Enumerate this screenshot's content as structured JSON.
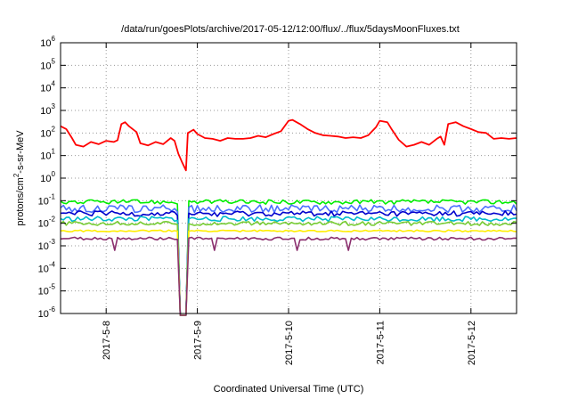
{
  "chart_data": {
    "type": "line",
    "title": "/data/run/goesPlots/archive/2017-05-12/12:00/flux/../flux/5daysMoonFluxes.txt",
    "xlabel": "Coordinated Universal Time (UTC)",
    "ylabel": "protons/cm2-s-sr-MeV",
    "ylabel_parts": [
      "protons/cm",
      "2",
      "-s-sr-MeV"
    ],
    "yscale": "log",
    "ylim": [
      1e-06,
      1000000.0
    ],
    "xlim": [
      "2017-05-07 12:00",
      "2017-05-12 12:00"
    ],
    "grid": true,
    "legend": "none",
    "y_ticks": [
      {
        "value": 1e-06,
        "label": "10",
        "exp": "-6"
      },
      {
        "value": 1e-05,
        "label": "10",
        "exp": "-5"
      },
      {
        "value": 0.0001,
        "label": "10",
        "exp": "-4"
      },
      {
        "value": 0.001,
        "label": "10",
        "exp": "-3"
      },
      {
        "value": 0.01,
        "label": "10",
        "exp": "-2"
      },
      {
        "value": 0.1,
        "label": "10",
        "exp": "-1"
      },
      {
        "value": 1,
        "label": "10",
        "exp": "0"
      },
      {
        "value": 10,
        "label": "10",
        "exp": "1"
      },
      {
        "value": 100,
        "label": "10",
        "exp": "2"
      },
      {
        "value": 1000,
        "label": "10",
        "exp": "3"
      },
      {
        "value": 10000,
        "label": "10",
        "exp": "4"
      },
      {
        "value": 100000,
        "label": "10",
        "exp": "5"
      },
      {
        "value": 1000000,
        "label": "10",
        "exp": "6"
      }
    ],
    "x_ticks": [
      {
        "value": "2017-05-08",
        "label": "2017-5-8"
      },
      {
        "value": "2017-05-09",
        "label": "2017-5-9"
      },
      {
        "value": "2017-05-10",
        "label": "2017-5-10"
      },
      {
        "value": "2017-05-11",
        "label": "2017-5-11"
      },
      {
        "value": "2017-05-12",
        "label": "2017-5-12"
      }
    ],
    "series": [
      {
        "color": "#ff0000",
        "values": [
          [
            "2017-05-07 12:00",
            200
          ],
          [
            "2017-05-07 13:30",
            150
          ],
          [
            "2017-05-07 15:00",
            60
          ],
          [
            "2017-05-07 16:00",
            30
          ],
          [
            "2017-05-07 18:00",
            25
          ],
          [
            "2017-05-07 20:00",
            40
          ],
          [
            "2017-05-07 22:00",
            32
          ],
          [
            "2017-05-08 00:00",
            45
          ],
          [
            "2017-05-08 02:00",
            40
          ],
          [
            "2017-05-08 03:00",
            48
          ],
          [
            "2017-05-08 04:00",
            250
          ],
          [
            "2017-05-08 05:00",
            300
          ],
          [
            "2017-05-08 06:00",
            200
          ],
          [
            "2017-05-08 08:00",
            110
          ],
          [
            "2017-05-08 09:00",
            35
          ],
          [
            "2017-05-08 11:00",
            28
          ],
          [
            "2017-05-08 13:00",
            40
          ],
          [
            "2017-05-08 15:00",
            32
          ],
          [
            "2017-05-08 17:00",
            60
          ],
          [
            "2017-05-08 18:00",
            45
          ],
          [
            "2017-05-08 19:00",
            12
          ],
          [
            "2017-05-08 20:00",
            5
          ],
          [
            "2017-05-08 21:00",
            2.2
          ],
          [
            "2017-05-08 21:30",
            100
          ],
          [
            "2017-05-08 23:00",
            140
          ],
          [
            "2017-05-09 00:00",
            90
          ],
          [
            "2017-05-09 02:00",
            60
          ],
          [
            "2017-05-09 04:00",
            55
          ],
          [
            "2017-05-09 06:00",
            45
          ],
          [
            "2017-05-09 08:00",
            60
          ],
          [
            "2017-05-09 10:00",
            55
          ],
          [
            "2017-05-09 12:00",
            55
          ],
          [
            "2017-05-09 14:00",
            60
          ],
          [
            "2017-05-09 16:00",
            75
          ],
          [
            "2017-05-09 18:00",
            65
          ],
          [
            "2017-05-09 20:00",
            90
          ],
          [
            "2017-05-09 22:00",
            120
          ],
          [
            "2017-05-10 00:00",
            350
          ],
          [
            "2017-05-10 01:00",
            380
          ],
          [
            "2017-05-10 03:00",
            250
          ],
          [
            "2017-05-10 05:00",
            150
          ],
          [
            "2017-05-10 07:00",
            100
          ],
          [
            "2017-05-10 09:00",
            80
          ],
          [
            "2017-05-10 11:00",
            75
          ],
          [
            "2017-05-10 13:00",
            70
          ],
          [
            "2017-05-10 15:00",
            60
          ],
          [
            "2017-05-10 17:00",
            65
          ],
          [
            "2017-05-10 19:00",
            60
          ],
          [
            "2017-05-10 21:00",
            80
          ],
          [
            "2017-05-10 23:00",
            180
          ],
          [
            "2017-05-11 00:00",
            350
          ],
          [
            "2017-05-11 02:00",
            300
          ],
          [
            "2017-05-11 03:00",
            160
          ],
          [
            "2017-05-11 05:00",
            50
          ],
          [
            "2017-05-11 07:00",
            25
          ],
          [
            "2017-05-11 09:00",
            30
          ],
          [
            "2017-05-11 11:00",
            40
          ],
          [
            "2017-05-11 13:00",
            30
          ],
          [
            "2017-05-11 15:00",
            55
          ],
          [
            "2017-05-11 16:00",
            70
          ],
          [
            "2017-05-11 17:00",
            30
          ],
          [
            "2017-05-11 18:00",
            250
          ],
          [
            "2017-05-11 20:00",
            300
          ],
          [
            "2017-05-11 22:00",
            200
          ],
          [
            "2017-05-12 00:00",
            150
          ],
          [
            "2017-05-12 02:00",
            110
          ],
          [
            "2017-05-12 04:00",
            100
          ],
          [
            "2017-05-12 06:00",
            55
          ],
          [
            "2017-05-12 08:00",
            60
          ],
          [
            "2017-05-12 10:00",
            55
          ],
          [
            "2017-05-12 12:00",
            60
          ]
        ]
      },
      {
        "color": "#00ee00",
        "band": [
          0.07,
          0.11
        ],
        "dropout": [
          "2017-05-08 19:00",
          "2017-05-08 21:30"
        ]
      },
      {
        "color": "#4a6fff",
        "band": [
          0.03,
          0.065
        ],
        "dropout": [
          "2017-05-08 19:00",
          "2017-05-08 21:30"
        ]
      },
      {
        "color": "#0000cc",
        "band": [
          0.02,
          0.035
        ],
        "dropout": [
          "2017-05-08 19:00",
          "2017-05-08 21:30"
        ]
      },
      {
        "color": "#00bbcc",
        "band": [
          0.012,
          0.02
        ],
        "dropout": [
          "2017-05-08 19:00",
          "2017-05-08 21:30"
        ]
      },
      {
        "color": "#77cc33",
        "band": [
          0.008,
          0.012
        ],
        "dropout": [
          "2017-05-08 19:00",
          "2017-05-08 21:30"
        ]
      },
      {
        "color": "#ffee00",
        "band": [
          0.0042,
          0.005
        ],
        "dropout": [
          "2017-05-08 19:00",
          "2017-05-08 21:30"
        ]
      },
      {
        "color": "#8b2f6e",
        "band": [
          0.0018,
          0.0024
        ],
        "dropout": [
          "2017-05-08 19:00",
          "2017-05-08 21:30"
        ]
      }
    ]
  }
}
